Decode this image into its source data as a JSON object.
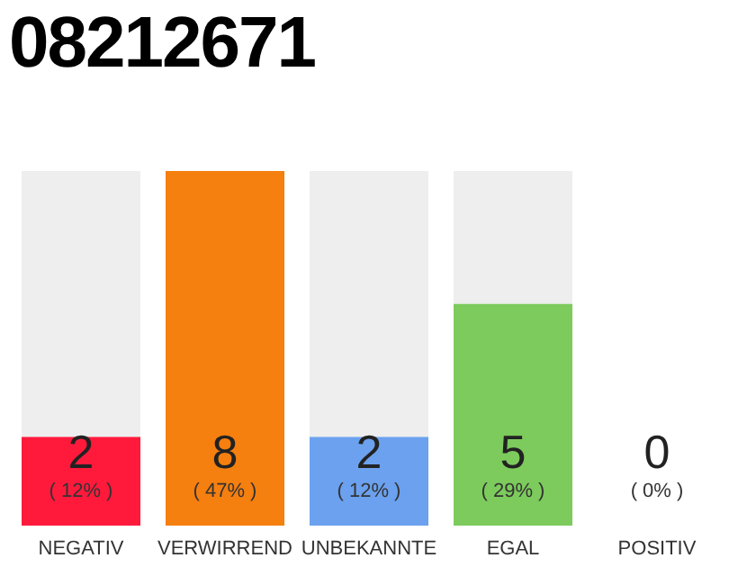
{
  "chart_data": {
    "type": "bar",
    "title": "08212671",
    "categories": [
      "NEGATIV",
      "VERWIRREND",
      "UNBEKANNTE",
      "EGAL",
      "POSITIV"
    ],
    "values": [
      2,
      8,
      2,
      5,
      0
    ],
    "colors": [
      "#ff1a3c",
      "#f57f0f",
      "#6ba1ee",
      "#7ccb5c",
      "#eeeeee"
    ],
    "data_labels": true,
    "value_labels": [
      "2 ( 12% )",
      "8 ( 47% )",
      "2 ( 12% )",
      "5 ( 29% )",
      "0 ( 0% )"
    ],
    "grid": false,
    "legend": false
  }
}
